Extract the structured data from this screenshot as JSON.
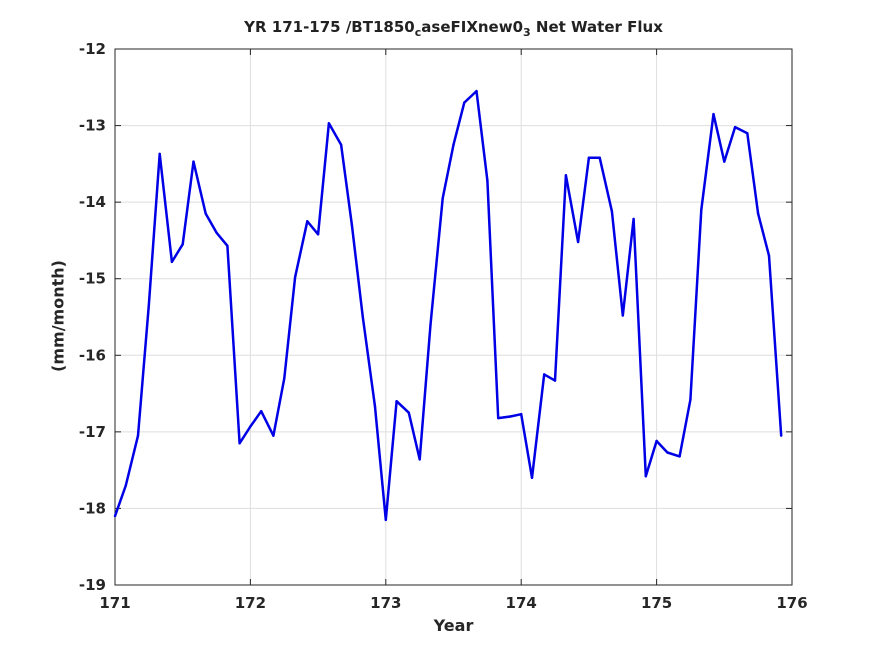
{
  "chart_data": {
    "type": "line",
    "title_parts": [
      "YR 171-175 /BT1850",
      "c",
      "aseFIXnew0",
      "3",
      " Net Water Flux"
    ],
    "xlabel": "Year",
    "ylabel": "(mm/month)",
    "xlim": [
      171,
      176
    ],
    "ylim": [
      -19,
      -12
    ],
    "xticks": [
      "171",
      "172",
      "173",
      "174",
      "175",
      "176"
    ],
    "yticks": [
      "-12",
      "-13",
      "-14",
      "-15",
      "-16",
      "-17",
      "-18",
      "-19"
    ],
    "grid": true,
    "series": [
      {
        "color": "#0000e6",
        "x": [
          171.0,
          171.08,
          171.17,
          171.25,
          171.33,
          171.42,
          171.5,
          171.58,
          171.67,
          171.75,
          171.83,
          171.92,
          172.0,
          172.08,
          172.17,
          172.25,
          172.33,
          172.42,
          172.5,
          172.58,
          172.67,
          172.75,
          172.83,
          172.92,
          173.0,
          173.08,
          173.17,
          173.25,
          173.33,
          173.42,
          173.5,
          173.58,
          173.67,
          173.75,
          173.83,
          173.92,
          174.0,
          174.08,
          174.17,
          174.25,
          174.33,
          174.42,
          174.5,
          174.58,
          174.67,
          174.75,
          174.83,
          174.92,
          175.0,
          175.08,
          175.17,
          175.25,
          175.33,
          175.42,
          175.5,
          175.58,
          175.67,
          175.75,
          175.83,
          175.92
        ],
        "y": [
          -18.1,
          -17.7,
          -17.05,
          -15.35,
          -13.37,
          -14.78,
          -14.55,
          -13.47,
          -14.15,
          -14.4,
          -14.57,
          -17.15,
          -16.93,
          -16.73,
          -17.05,
          -16.3,
          -14.98,
          -14.25,
          -14.42,
          -12.97,
          -13.25,
          -14.3,
          -15.5,
          -16.67,
          -18.15,
          -16.6,
          -16.75,
          -17.36,
          -15.6,
          -13.95,
          -13.25,
          -12.7,
          -12.55,
          -13.72,
          -16.82,
          -16.8,
          -16.77,
          -17.6,
          -16.25,
          -16.33,
          -13.65,
          -14.52,
          -13.42,
          -13.42,
          -14.12,
          -15.48,
          -14.22,
          -17.58,
          -17.12,
          -17.27,
          -17.32,
          -16.58,
          -14.1,
          -12.85,
          -13.47,
          -13.02,
          -13.1,
          -14.15,
          -14.7,
          -17.05
        ]
      }
    ]
  }
}
